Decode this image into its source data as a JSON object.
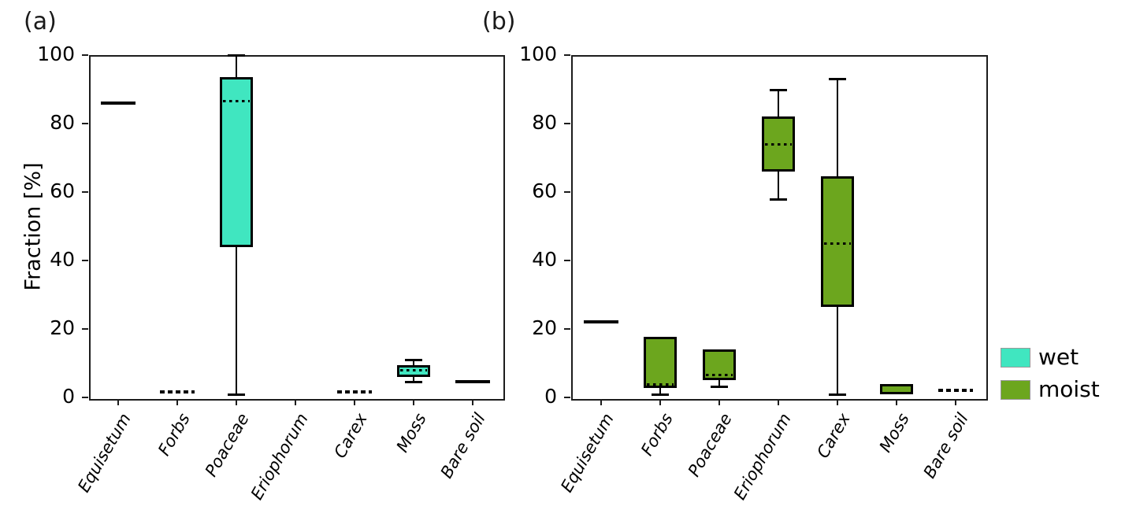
{
  "figure": {
    "panel_a_title": "(a)",
    "panel_b_title": "(b)"
  },
  "legend": {
    "items": [
      {
        "label": "wet",
        "color": "#40E6C0"
      },
      {
        "label": "moist",
        "color": "#6CA61E"
      }
    ]
  },
  "chart_data": [
    {
      "type": "box",
      "panel": "a",
      "title": "(a)",
      "group": "wet",
      "box_color": "#40E6C0",
      "ylabel": "Fraction [%]",
      "ylim": [
        0,
        100
      ],
      "yticks": [
        0,
        20,
        40,
        60,
        80,
        100
      ],
      "categories": [
        "Equisetum",
        "Forbs",
        "Poaceae",
        "Eriophorum",
        "Carex",
        "Moss",
        "Bare soil"
      ],
      "boxes": [
        {
          "category": "Equisetum",
          "kind": "median-solid",
          "median": 86
        },
        {
          "category": "Forbs",
          "kind": "median-dashed",
          "median": 1.5
        },
        {
          "category": "Poaceae",
          "kind": "box",
          "q1": 44,
          "q3": 93.5,
          "median": 86.5,
          "whisker_low": 1,
          "whisker_high": 100
        },
        {
          "category": "Eriophorum",
          "kind": "none"
        },
        {
          "category": "Carex",
          "kind": "median-dashed",
          "median": 1.5
        },
        {
          "category": "Moss",
          "kind": "box",
          "q1": 6,
          "q3": 9.5,
          "median": 8,
          "whisker_low": 4.5,
          "whisker_high": 11
        },
        {
          "category": "Bare soil",
          "kind": "median-solid",
          "median": 4.5
        }
      ]
    },
    {
      "type": "box",
      "panel": "b",
      "title": "(b)",
      "group": "moist",
      "box_color": "#6CA61E",
      "ylabel": "",
      "ylim": [
        0,
        100
      ],
      "yticks": [
        0,
        20,
        40,
        60,
        80,
        100
      ],
      "categories": [
        "Equisetum",
        "Forbs",
        "Poaceae",
        "Eriophorum",
        "Carex",
        "Moss",
        "Bare soil"
      ],
      "boxes": [
        {
          "category": "Equisetum",
          "kind": "median-solid",
          "median": 22
        },
        {
          "category": "Forbs",
          "kind": "box",
          "q1": 2.8,
          "q3": 17.8,
          "median": 3.7,
          "whisker_low": 1,
          "whisker_high": null
        },
        {
          "category": "Poaceae",
          "kind": "box",
          "q1": 5,
          "q3": 14,
          "median": 6.5,
          "whisker_low": 3.2,
          "whisker_high": null
        },
        {
          "category": "Eriophorum",
          "kind": "box",
          "q1": 66,
          "q3": 82,
          "median": 74,
          "whisker_low": 58,
          "whisker_high": 90
        },
        {
          "category": "Carex",
          "kind": "box",
          "q1": 26.5,
          "q3": 64.5,
          "median": 45,
          "whisker_low": 1,
          "whisker_high": 93
        },
        {
          "category": "Moss",
          "kind": "box",
          "q1": 1,
          "q3": 4,
          "median": 3.5,
          "whisker_low": null,
          "whisker_high": null
        },
        {
          "category": "Bare soil",
          "kind": "median-dashed",
          "median": 2
        }
      ]
    }
  ]
}
